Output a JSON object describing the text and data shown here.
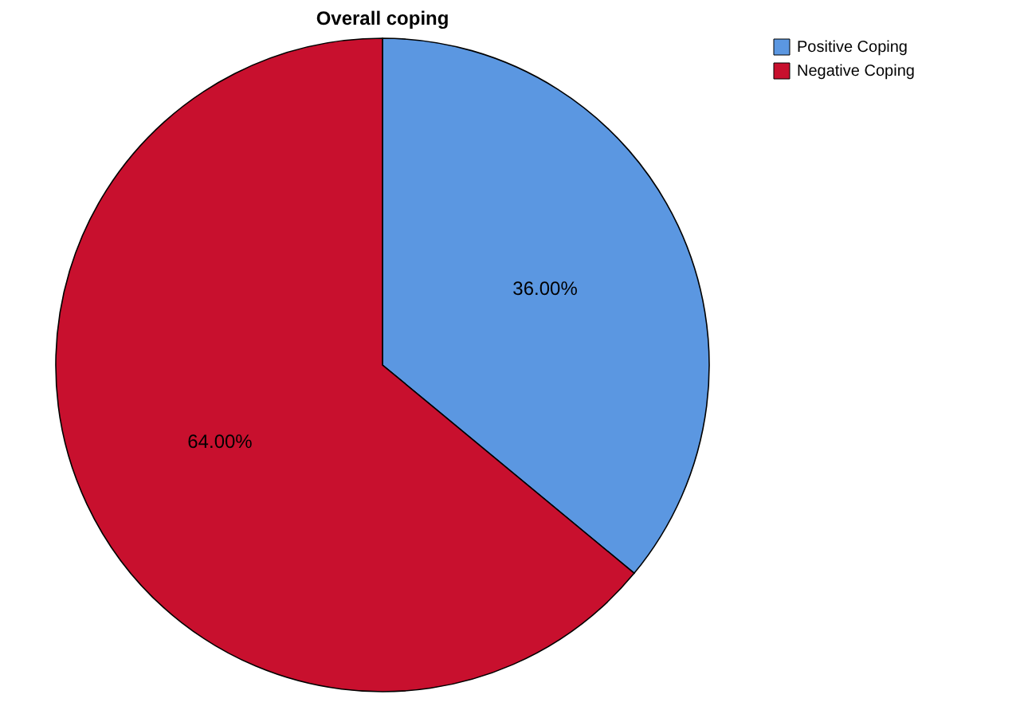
{
  "chart_data": {
    "type": "pie",
    "title": "Overall coping",
    "categories": [
      "Positive Coping",
      "Negative Coping"
    ],
    "values": [
      36,
      64
    ],
    "colors": [
      "#5b97e1",
      "#c8102e"
    ],
    "value_labels": [
      "36.00%",
      "64.00%"
    ],
    "legend": "top right"
  }
}
